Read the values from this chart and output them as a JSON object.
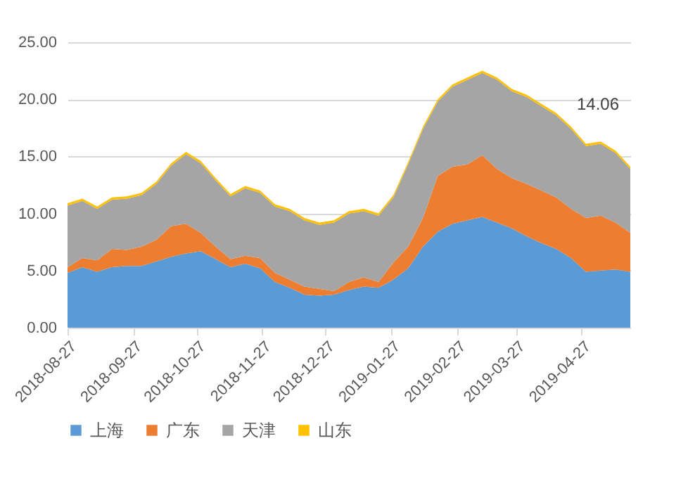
{
  "chart_data": {
    "type": "area",
    "stacked": true,
    "grid": "y",
    "legend": "bottom",
    "x": [
      "2018-08-27",
      "2018-09-03",
      "2018-09-10",
      "2018-09-17",
      "2018-09-24",
      "2018-10-01",
      "2018-10-08",
      "2018-10-15",
      "2018-10-22",
      "2018-10-29",
      "2018-11-05",
      "2018-11-12",
      "2018-11-19",
      "2018-11-26",
      "2018-12-03",
      "2018-12-10",
      "2018-12-17",
      "2018-12-24",
      "2018-12-31",
      "2019-01-07",
      "2019-01-14",
      "2019-01-21",
      "2019-01-28",
      "2019-02-04",
      "2019-02-11",
      "2019-02-18",
      "2019-02-25",
      "2019-03-04",
      "2019-03-11",
      "2019-03-18",
      "2019-03-25",
      "2019-04-01",
      "2019-04-08",
      "2019-04-15",
      "2019-04-22",
      "2019-04-29",
      "2019-05-06",
      "2019-05-13",
      "2019-05-20"
    ],
    "series": [
      {
        "name": "上海",
        "color": "#5b9bd5",
        "values": [
          4.8,
          5.3,
          4.9,
          5.3,
          5.4,
          5.4,
          5.8,
          6.2,
          6.5,
          6.7,
          6.0,
          5.3,
          5.6,
          5.2,
          4.0,
          3.5,
          2.9,
          2.8,
          2.9,
          3.3,
          3.6,
          3.5,
          4.2,
          5.2,
          7.1,
          8.4,
          9.1,
          9.4,
          9.7,
          9.2,
          8.7,
          8.0,
          7.4,
          6.9,
          6.1,
          4.9,
          5.0,
          5.1,
          4.9
        ]
      },
      {
        "name": "广东",
        "color": "#ed7d31",
        "values": [
          0.5,
          0.8,
          1.0,
          1.6,
          1.4,
          1.7,
          1.9,
          2.7,
          2.6,
          1.6,
          1.1,
          0.7,
          0.7,
          0.9,
          0.8,
          0.7,
          0.7,
          0.6,
          0.3,
          0.7,
          0.8,
          0.5,
          1.5,
          1.9,
          2.5,
          4.9,
          5.0,
          4.9,
          5.4,
          4.7,
          4.4,
          4.6,
          4.6,
          4.5,
          4.3,
          4.7,
          4.8,
          4.1,
          3.4
        ]
      },
      {
        "name": "天津",
        "color": "#a5a5a5",
        "values": [
          5.4,
          5.0,
          4.5,
          4.3,
          4.5,
          4.5,
          4.9,
          5.3,
          6.1,
          6.1,
          5.8,
          5.5,
          5.9,
          5.7,
          5.8,
          6.0,
          5.8,
          5.6,
          6.0,
          6.0,
          5.8,
          5.8,
          5.7,
          7.2,
          7.8,
          6.5,
          7.0,
          7.4,
          7.2,
          7.8,
          7.6,
          7.6,
          7.4,
          7.2,
          7.0,
          6.3,
          6.3,
          6.1,
          5.6
        ]
      },
      {
        "name": "山东",
        "color": "#ffc000",
        "values": [
          0.2,
          0.2,
          0.2,
          0.2,
          0.2,
          0.2,
          0.2,
          0.2,
          0.2,
          0.2,
          0.2,
          0.2,
          0.2,
          0.2,
          0.2,
          0.2,
          0.2,
          0.2,
          0.2,
          0.2,
          0.2,
          0.2,
          0.2,
          0.2,
          0.2,
          0.2,
          0.2,
          0.2,
          0.2,
          0.2,
          0.2,
          0.2,
          0.2,
          0.2,
          0.2,
          0.2,
          0.2,
          0.2,
          0.2
        ]
      }
    ],
    "xlim": [
      "2018-08-27",
      "2019-05-20"
    ],
    "xticks": [
      "2018-08-27",
      "2018-09-27",
      "2018-10-27",
      "2018-11-27",
      "2018-12-27",
      "2019-01-27",
      "2019-02-27",
      "2019-03-27",
      "2019-04-27"
    ],
    "ylim": [
      0,
      25
    ],
    "yticks": [
      {
        "value": 0,
        "label": "0.00"
      },
      {
        "value": 5,
        "label": "5.00"
      },
      {
        "value": 10,
        "label": "10.00"
      },
      {
        "value": 15,
        "label": "15.00"
      },
      {
        "value": 20,
        "label": "20.00"
      },
      {
        "value": 25,
        "label": "25.00"
      }
    ],
    "annotations": [
      "14.06"
    ]
  }
}
